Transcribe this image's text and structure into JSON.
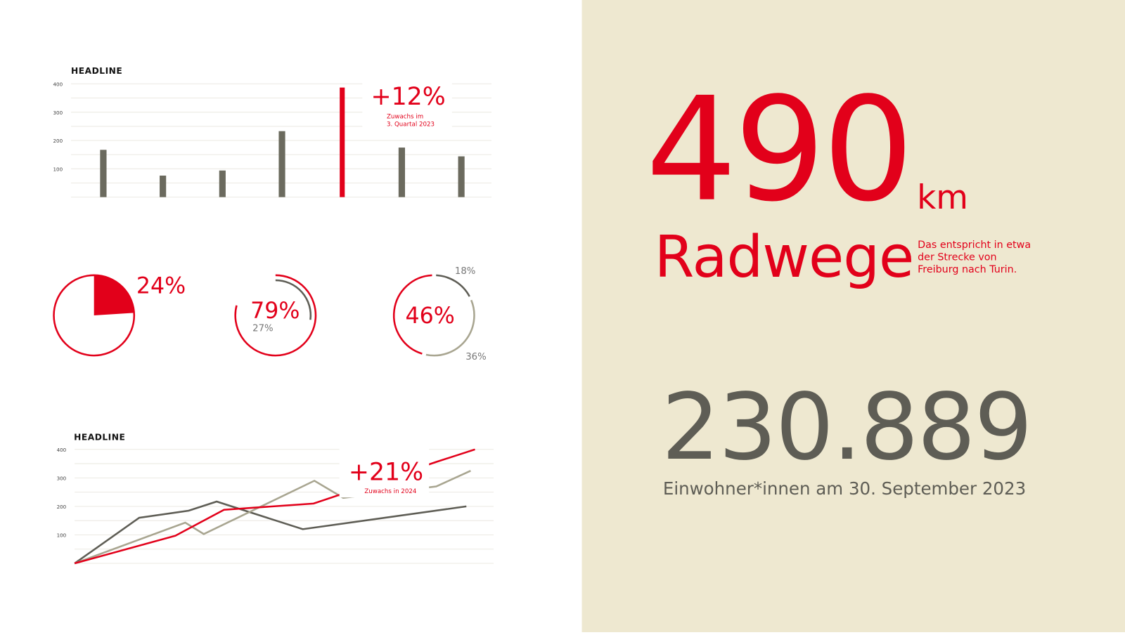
{
  "colors": {
    "accent": "#E2001A",
    "dark": "#5e5d55",
    "bar": "#6b6a5e",
    "muted": "#a8a590",
    "panel": "#EEE8D0",
    "grid": "#ebe9e2"
  },
  "chart_data": [
    {
      "type": "bar",
      "title": "HEADLINE",
      "yticks": [
        "100",
        "200",
        "300",
        "400"
      ],
      "ylim": [
        0,
        400
      ],
      "values": [
        167,
        76,
        94,
        233,
        387,
        175,
        144
      ],
      "highlight_index": 4,
      "annotation": {
        "value": "+12%",
        "text_lines": [
          "Zuwachs im",
          "3. Quartal 2023"
        ]
      }
    },
    {
      "type": "pie",
      "value": 24,
      "label": "24%"
    },
    {
      "type": "donut",
      "outer": 79,
      "inner": 27,
      "label": "79%",
      "sublabel": "27%"
    },
    {
      "type": "donut",
      "segments": [
        {
          "value": 18,
          "label": "18%",
          "color": "dark"
        },
        {
          "value": 36,
          "label": "36%",
          "color": "muted"
        },
        {
          "value": 46,
          "label": "46%",
          "color": "accent"
        }
      ]
    },
    {
      "type": "line",
      "title": "HEADLINE",
      "yticks": [
        "100",
        "200",
        "300",
        "400"
      ],
      "ylim": [
        0,
        400
      ],
      "series": [
        {
          "color": "dark",
          "points": [
            [
              0,
              0
            ],
            [
              1.5,
              160
            ],
            [
              2.65,
              185
            ],
            [
              3.3,
              217
            ],
            [
              5.3,
              120
            ],
            [
              9.1,
              200
            ]
          ]
        },
        {
          "color": "muted",
          "points": [
            [
              0,
              0
            ],
            [
              2.57,
              143
            ],
            [
              3,
              103
            ],
            [
              5.57,
              290
            ],
            [
              6.24,
              230
            ],
            [
              8.4,
              270
            ],
            [
              9.2,
              325
            ]
          ]
        },
        {
          "color": "accent",
          "points": [
            [
              0,
              0
            ],
            [
              2.34,
              97
            ],
            [
              3.47,
              188
            ],
            [
              5.55,
              210
            ],
            [
              6.24,
              245
            ],
            [
              8.4,
              356
            ],
            [
              9.3,
              400
            ]
          ]
        }
      ],
      "annotation": {
        "value": "+21%",
        "text": "Zuwachs in 2024"
      }
    }
  ],
  "stats": {
    "distance": "490",
    "distance_unit": "km",
    "distance_label": "Radwege",
    "distance_note": "Das entspricht in etwa der Strecke von Freiburg nach Turin.",
    "population": "230.889",
    "population_caption": "Einwohner*innen am 30. September 2023"
  }
}
